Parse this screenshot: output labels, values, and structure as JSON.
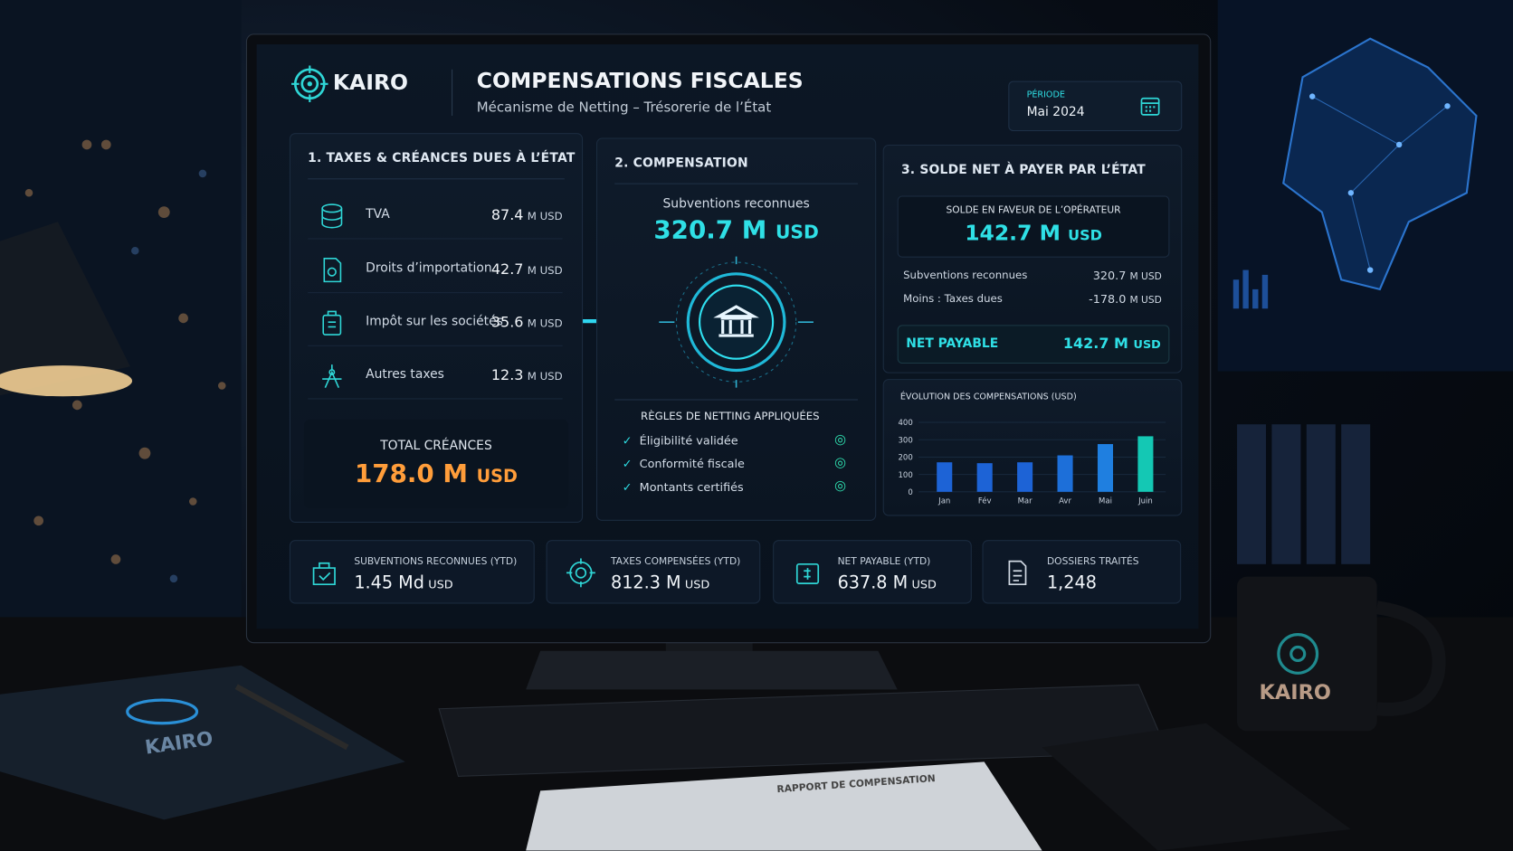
{
  "header": {
    "brand": "KAIRO",
    "title": "COMPENSATIONS FISCALES",
    "subtitle": "Mécanisme de Netting – Trésorerie de l’État",
    "period_label": "PÉRIODE",
    "period": "Mai 2024"
  },
  "panel1": {
    "title": "1. TAXES & CRÉANCES DUES À L’ÉTAT",
    "items": [
      {
        "label": "TVA",
        "amount": "87.4",
        "unit": "M USD"
      },
      {
        "label": "Droits d’importation",
        "amount": "42.7",
        "unit": "M USD"
      },
      {
        "label": "Impôt sur les sociétés",
        "amount": "35.6",
        "unit": "M USD"
      },
      {
        "label": "Autres taxes",
        "amount": "12.3",
        "unit": "M USD"
      }
    ],
    "total_label": "TOTAL CRÉANCES",
    "total_amount": "178.0 M",
    "total_unit": "USD"
  },
  "panel2": {
    "title": "2. COMPENSATION",
    "subtitle": "Subventions reconnues",
    "amount": "320.7 M",
    "unit": "USD",
    "rules_title": "RÈGLES DE NETTING APPLIQUÉES",
    "rules": [
      "Éligibilité validée",
      "Conformité fiscale",
      "Montants certifiés"
    ]
  },
  "panel3": {
    "title": "3. SOLDE NET À PAYER PAR L’ÉTAT",
    "balance_label": "SOLDE EN FAVEUR DE L’OPÉRATEUR",
    "balance_amount": "142.7 M",
    "balance_unit": "USD",
    "rows": [
      {
        "label": "Subventions reconnues",
        "amount": "320.7",
        "unit": "M USD"
      },
      {
        "label": "Moins : Taxes dues",
        "amount": "-178.0",
        "unit": "M USD"
      }
    ],
    "net_label": "NET PAYABLE",
    "net_amount": "142.7 M",
    "net_unit": "USD"
  },
  "chart_data": {
    "type": "bar",
    "title": "ÉVOLUTION DES COMPENSATIONS (USD)",
    "categories": [
      "Jan",
      "Fév",
      "Mar",
      "Avr",
      "Mai",
      "Juin"
    ],
    "values": [
      170,
      165,
      170,
      210,
      275,
      320
    ],
    "colors": [
      "#1d63d6",
      "#1d63d6",
      "#1d63d6",
      "#1d6fd9",
      "#1f7fe0",
      "#14c8b4"
    ],
    "ylim": [
      0,
      400
    ],
    "yticks": [
      0,
      100,
      200,
      300,
      400
    ]
  },
  "kpis": [
    {
      "label": "SUBVENTIONS RECONNUES (YTD)",
      "amount": "1.45 Md",
      "unit": "USD"
    },
    {
      "label": "TAXES COMPENSÉES (YTD)",
      "amount": "812.3 M",
      "unit": "USD"
    },
    {
      "label": "NET PAYABLE (YTD)",
      "amount": "637.8 M",
      "unit": "USD"
    },
    {
      "label": "DOSSIERS TRAITÉS",
      "amount": "1,248"
    }
  ],
  "scene": {
    "mug_brand": "KAIRO",
    "notebook_brand": "KAIRO",
    "report_title": "RAPPORT DE COMPENSATION"
  }
}
